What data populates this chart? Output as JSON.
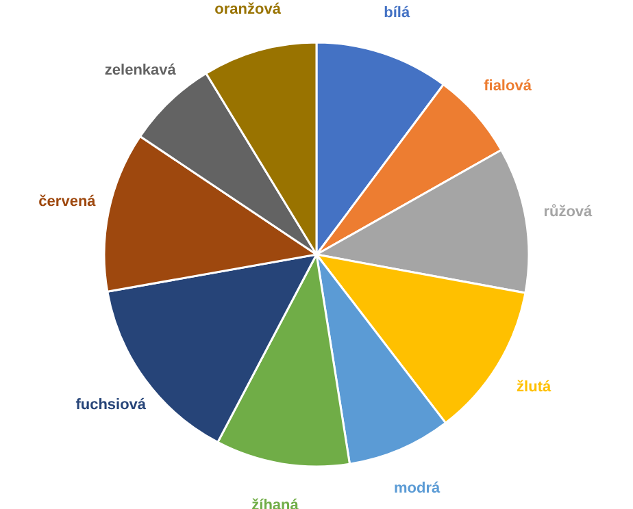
{
  "chart_data": {
    "type": "pie",
    "categories": [
      "bílá",
      "fialová",
      "růžová",
      "žlutá",
      "modrá",
      "žíhaná",
      "fuchsiová",
      "červená",
      "zelenkavá",
      "oranžová"
    ],
    "values": [
      10.2,
      6.6,
      11.1,
      11.7,
      7.9,
      10.2,
      14.5,
      12.2,
      6.9,
      8.7
    ],
    "colors": [
      "#4472c4",
      "#ed7d31",
      "#a5a5a5",
      "#ffc000",
      "#5b9bd5",
      "#70ad47",
      "#264478",
      "#9e480e",
      "#636363",
      "#997300"
    ]
  }
}
